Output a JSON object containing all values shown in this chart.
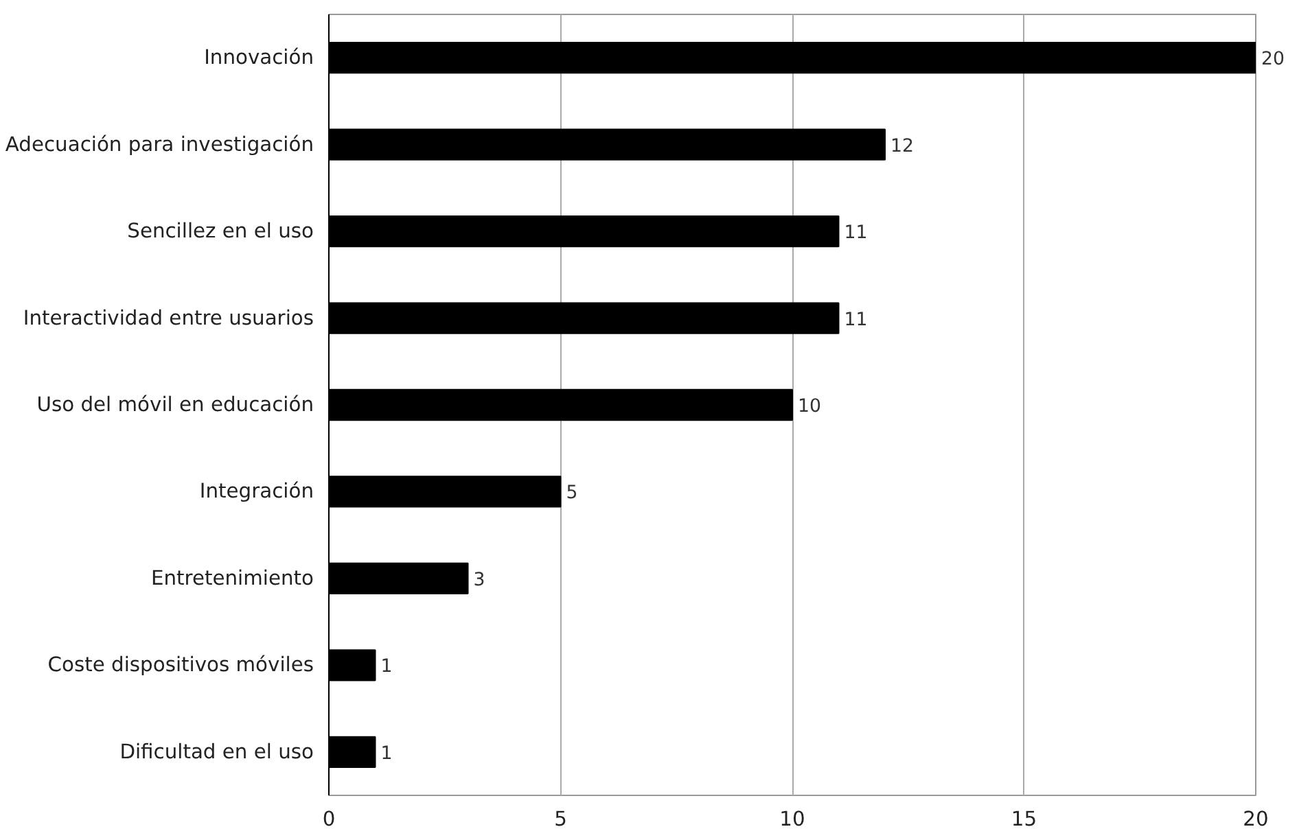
{
  "chart_data": {
    "type": "bar",
    "orientation": "horizontal",
    "categories": [
      "Innovación",
      "Adecuación para investigación",
      "Sencillez en el uso",
      "Interactividad entre usuarios",
      "Uso del móvil en educación",
      "Integración",
      "Entretenimiento",
      "Coste dispositivos móviles",
      "Dificultad en el uso"
    ],
    "values": [
      20,
      12,
      11,
      11,
      10,
      5,
      3,
      1,
      1
    ],
    "color": "#000000",
    "xlim": [
      0,
      20
    ],
    "xticks": [
      0,
      5,
      10,
      15,
      20
    ],
    "grid": "x",
    "data_labels": true
  }
}
